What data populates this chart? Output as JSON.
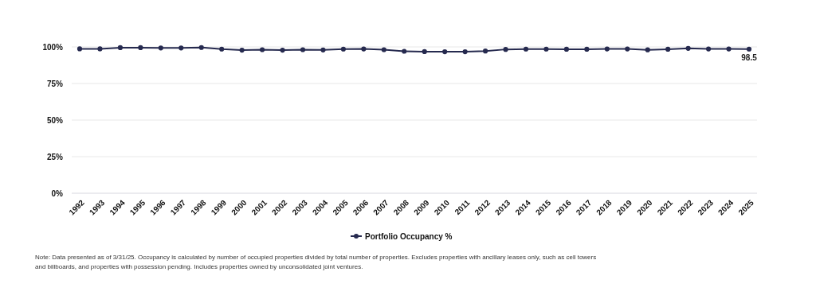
{
  "chart_data": {
    "type": "line",
    "categories": [
      "1992",
      "1993",
      "1994",
      "1995",
      "1996",
      "1997",
      "1998",
      "1999",
      "2000",
      "2001",
      "2002",
      "2003",
      "2004",
      "2005",
      "2006",
      "2007",
      "2008",
      "2009",
      "2010",
      "2011",
      "2012",
      "2013",
      "2014",
      "2015",
      "2016",
      "2017",
      "2018",
      "2019",
      "2020",
      "2021",
      "2022",
      "2023",
      "2024",
      "2025"
    ],
    "series": [
      {
        "name": "Portfolio Occupancy %",
        "color": "#262a4f",
        "values": [
          98.7,
          98.7,
          99.5,
          99.5,
          99.3,
          99.3,
          99.6,
          98.5,
          97.8,
          98.1,
          97.8,
          98.1,
          97.9,
          98.5,
          98.6,
          98.1,
          97.0,
          96.8,
          96.7,
          96.7,
          97.2,
          98.3,
          98.5,
          98.5,
          98.4,
          98.4,
          98.6,
          98.6,
          98.0,
          98.4,
          99.0,
          98.6,
          98.6,
          98.5
        ],
        "value_labels": [
          null,
          null,
          null,
          null,
          null,
          null,
          null,
          null,
          null,
          null,
          null,
          null,
          null,
          null,
          null,
          null,
          null,
          null,
          null,
          null,
          null,
          null,
          null,
          null,
          null,
          null,
          null,
          null,
          null,
          null,
          null,
          null,
          null,
          "98.5"
        ]
      }
    ],
    "ylim": [
      0,
      100
    ],
    "yticks": [
      {
        "value": 0,
        "label": "0%"
      },
      {
        "value": 25,
        "label": "25%"
      },
      {
        "value": 50,
        "label": "50%"
      },
      {
        "value": 75,
        "label": "75%"
      },
      {
        "value": 100,
        "label": "100%"
      }
    ],
    "grid": "y",
    "legend": "bottom",
    "marker": "circle",
    "line_style": "solid",
    "annotations": [
      "Note: Data presented as of 3/31/25. Occupancy is calculated by number of occupied properties divided by total number of properties. Excludes properties with ancillary leases only, such as cell towers and billboards, and properties with possession pending. Includes properties owned by unconsolidated joint ventures."
    ]
  }
}
